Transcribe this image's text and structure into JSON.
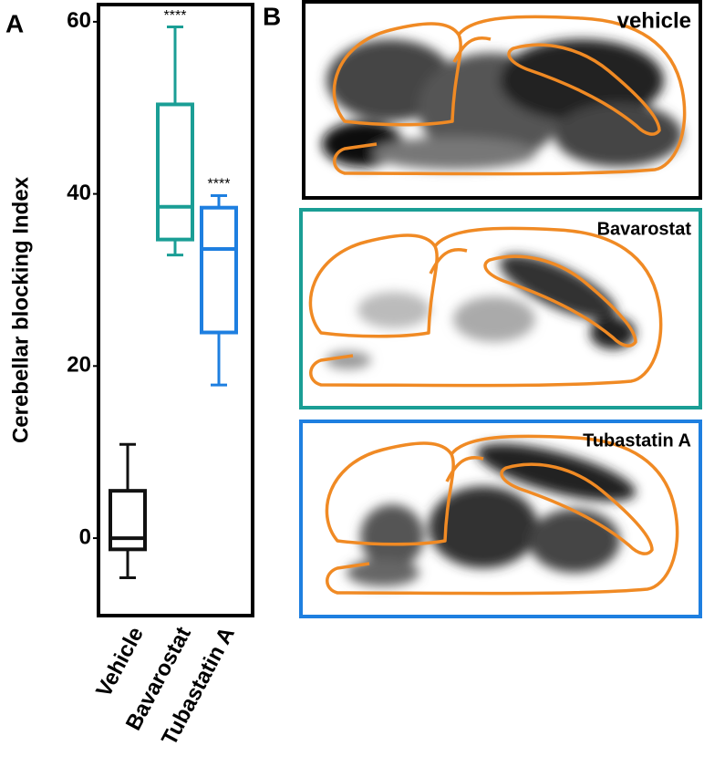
{
  "chart_data": {
    "type": "box",
    "y_label": "Cerebellar blocking Index",
    "categories": [
      "Vehicle",
      "Bavarostat",
      "Tubastatin A"
    ],
    "boxes": [
      {
        "min": -4.6,
        "q1": -1.3,
        "median": 0,
        "q3": 5.5,
        "max": 10.9,
        "color": "#111111"
      },
      {
        "min": 32.9,
        "q1": 34.7,
        "median": 38.5,
        "q3": 50.4,
        "max": 59.4,
        "color": "#1a9e95"
      },
      {
        "min": 17.8,
        "q1": 23.9,
        "median": 33.6,
        "q3": 38.4,
        "max": 39.8,
        "color": "#1e7fe0"
      }
    ],
    "annotations": [
      {
        "text": "****",
        "category": "Bavarostat"
      },
      {
        "text": "****",
        "category": "Tubastatin A"
      }
    ],
    "ylim": [
      -9,
      62
    ],
    "yticks": [
      0,
      20,
      40,
      60
    ],
    "grid": false
  },
  "panel_labels": [
    "A",
    "B"
  ],
  "images": [
    {
      "label": "vehicle",
      "color": "#000000"
    },
    {
      "label": "Bavarostat",
      "color": "#1a9e95"
    },
    {
      "label": "Tubastatin A",
      "color": "#1e7fe0"
    }
  ]
}
